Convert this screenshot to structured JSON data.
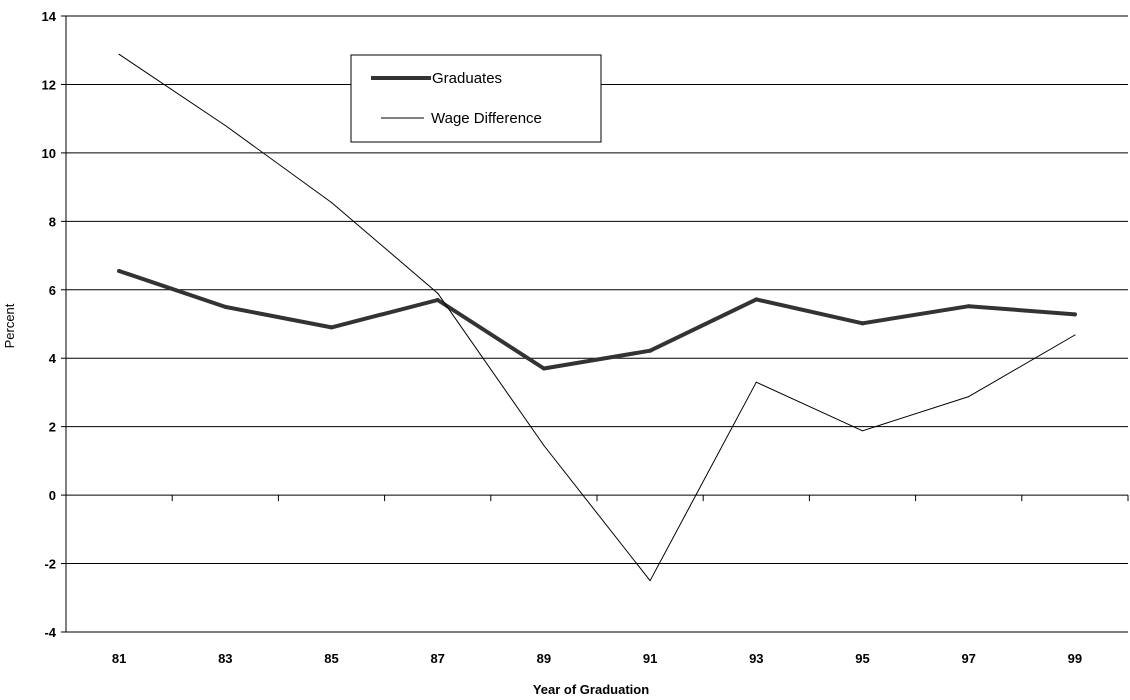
{
  "chart_data": {
    "type": "line",
    "title": "",
    "xlabel": "Year of Graduation",
    "ylabel": "Percent",
    "categories": [
      "81",
      "83",
      "85",
      "87",
      "89",
      "91",
      "93",
      "95",
      "97",
      "99"
    ],
    "ylim": [
      -4,
      14
    ],
    "yticks": [
      "-4",
      "-2",
      "0",
      "2",
      "4",
      "6",
      "8",
      "10",
      "12",
      "14"
    ],
    "grid": true,
    "legend_position": "top-center",
    "series": [
      {
        "name": "Graduates",
        "values": [
          6.55,
          5.5,
          4.9,
          5.7,
          3.7,
          4.22,
          5.72,
          5.02,
          5.52,
          5.28
        ],
        "color": "#333333",
        "weight": "thick"
      },
      {
        "name": "Wage Difference",
        "values": [
          12.88,
          10.8,
          8.55,
          5.9,
          1.45,
          -2.5,
          3.3,
          1.88,
          2.88,
          4.68
        ],
        "color": "#000000",
        "weight": "thin"
      }
    ]
  }
}
